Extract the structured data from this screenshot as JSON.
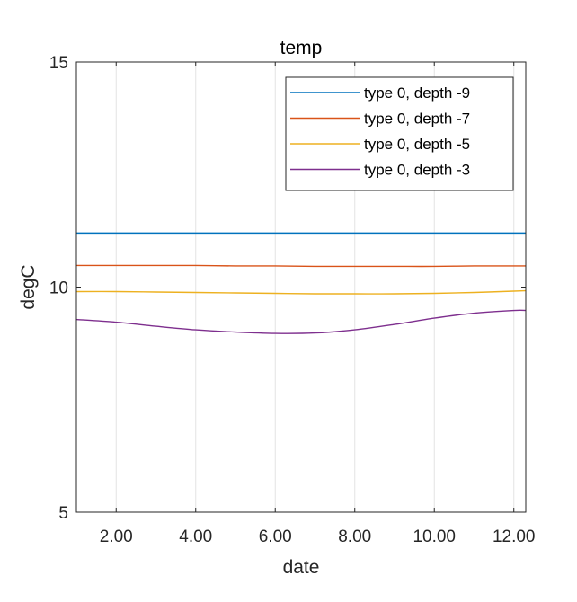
{
  "chart_data": {
    "type": "line",
    "title": "temp",
    "xlabel": "date",
    "ylabel": "degC",
    "xlim": [
      1,
      12.3
    ],
    "ylim": [
      5,
      15
    ],
    "xticks": [
      2,
      4,
      6,
      8,
      10,
      12
    ],
    "xtick_labels": [
      "2.00",
      "4.00",
      "6.00",
      "8.00",
      "10.00",
      "12.00"
    ],
    "yticks": [
      5,
      10,
      15
    ],
    "ytick_labels": [
      "5",
      "10",
      "15"
    ],
    "grid": "vertical",
    "legend_position": "top-right",
    "x": [
      1,
      2,
      3,
      4,
      5,
      6,
      7,
      8,
      9,
      10,
      11,
      12,
      12.3
    ],
    "series": [
      {
        "name": "type 0, depth -9",
        "color": "#0072BD",
        "values": [
          11.2,
          11.2,
          11.2,
          11.2,
          11.2,
          11.2,
          11.2,
          11.2,
          11.2,
          11.2,
          11.2,
          11.2,
          11.2
        ]
      },
      {
        "name": "type 0, depth -7",
        "color": "#D95319",
        "values": [
          10.48,
          10.48,
          10.48,
          10.48,
          10.47,
          10.47,
          10.46,
          10.46,
          10.46,
          10.46,
          10.47,
          10.47,
          10.47
        ]
      },
      {
        "name": "type 0, depth -5",
        "color": "#EDB120",
        "values": [
          9.9,
          9.9,
          9.89,
          9.88,
          9.87,
          9.86,
          9.85,
          9.85,
          9.85,
          9.86,
          9.88,
          9.91,
          9.92
        ]
      },
      {
        "name": "type 0, depth -3",
        "color": "#7E2F8E",
        "values": [
          9.28,
          9.22,
          9.13,
          9.05,
          9.0,
          8.97,
          8.98,
          9.05,
          9.17,
          9.31,
          9.42,
          9.48,
          9.48
        ]
      }
    ]
  }
}
